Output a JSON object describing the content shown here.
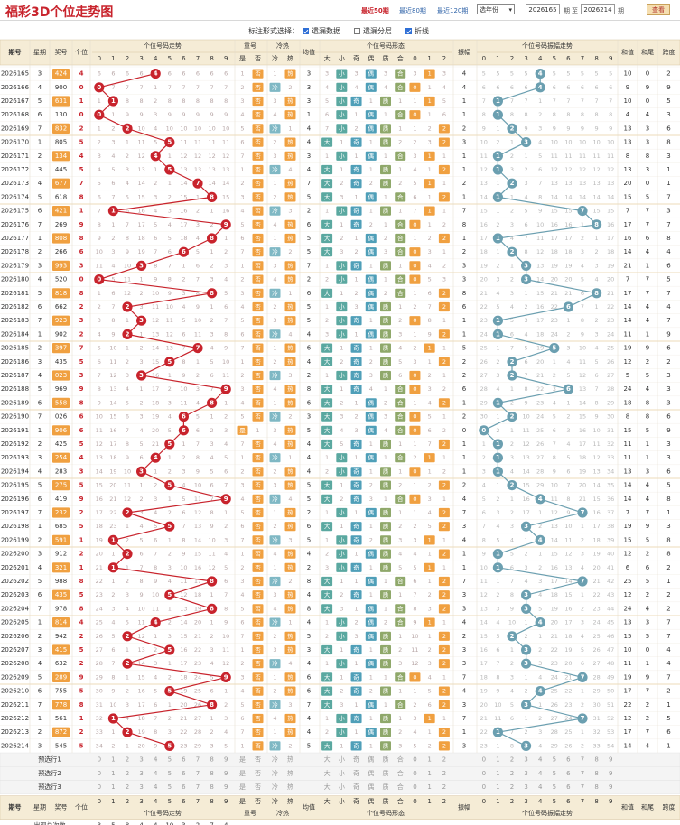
{
  "title": "福彩3D个位走势图",
  "top_links": [
    "最近50期",
    "最近80期",
    "最近120期"
  ],
  "year_select": "选年份",
  "period_from": "2026165",
  "period_to": "2026214",
  "label_qi": "期",
  "label_zhi": "至",
  "query_button": "查看",
  "options_label": "标注形式选择：",
  "options": [
    {
      "label": "遗漏数据",
      "checked": true
    },
    {
      "label": "遗漏分层",
      "checked": false
    },
    {
      "label": "折线",
      "checked": true
    }
  ],
  "headers": {
    "period": "期号",
    "week": "星期",
    "prize": "奖号",
    "unit": "个位",
    "trend": "个位号码走势",
    "repeat": "重号",
    "hotcold": "冷热",
    "avg": "均值",
    "form": "个位号码形态",
    "amplitude": "振幅",
    "amptrend": "个位号码振幅走势",
    "sumval": "和值",
    "sumtail": "和尾",
    "span": "跨度",
    "digits": [
      "0",
      "1",
      "2",
      "3",
      "4",
      "5",
      "6",
      "7",
      "8",
      "9"
    ],
    "repeat_sub": [
      "是",
      "否"
    ],
    "hotcold_sub": [
      "冷",
      "热"
    ],
    "form_sub": [
      "大",
      "小",
      "奇",
      "偶",
      "质",
      "合",
      "0",
      "1",
      "2"
    ]
  },
  "chart_data": {
    "type": "table",
    "periods": [
      "2026165",
      "2026166",
      "2026167",
      "2026168",
      "2026169",
      "2026170",
      "2026171",
      "2026172",
      "2026173",
      "2026174",
      "2026175",
      "2026176",
      "2026177",
      "2026178",
      "2026179",
      "2026180",
      "2026181",
      "2026182",
      "2026183",
      "2026184",
      "2026185",
      "2026186",
      "2026187",
      "2026188",
      "2026189",
      "2026190",
      "2026191",
      "2026192",
      "2026193",
      "2026194",
      "2026195",
      "2026196",
      "2026197",
      "2026198",
      "2026199",
      "2026200",
      "2026201",
      "2026202",
      "2026203",
      "2026204",
      "2026205",
      "2026206",
      "2026207",
      "2026208",
      "2026209",
      "2026210",
      "2026211",
      "2026212",
      "2026213",
      "2026214"
    ],
    "weeks": [
      3,
      4,
      5,
      6,
      7,
      1,
      2,
      3,
      4,
      5,
      6,
      7,
      1,
      2,
      3,
      4,
      5,
      6,
      7,
      1,
      2,
      3,
      4,
      5,
      6,
      7,
      1,
      2,
      3,
      4,
      5,
      6,
      7,
      1,
      2,
      3,
      4,
      5,
      6,
      7,
      1,
      2,
      3,
      4,
      5,
      6,
      7,
      1,
      2,
      3
    ],
    "prizes": [
      "424",
      "900",
      "631",
      "130",
      "832",
      "805",
      "134",
      "445",
      "677",
      "618",
      "421",
      "269",
      "808",
      "266",
      "993",
      "520",
      "818",
      "662",
      "923",
      "902",
      "397",
      "435",
      "023",
      "969",
      "558",
      "026",
      "906",
      "425",
      "254",
      "283",
      "275",
      "419",
      "232",
      "685",
      "591",
      "912",
      "321",
      "988",
      "435",
      "978",
      "814",
      "942",
      "415",
      "632",
      "289",
      "755",
      "778",
      "561",
      "872",
      "545"
    ],
    "units": [
      4,
      0,
      1,
      0,
      2,
      5,
      4,
      5,
      7,
      8,
      1,
      9,
      8,
      6,
      3,
      0,
      8,
      2,
      3,
      2,
      7,
      5,
      3,
      9,
      8,
      6,
      6,
      5,
      4,
      3,
      5,
      9,
      2,
      5,
      1,
      2,
      1,
      8,
      5,
      8,
      4,
      2,
      5,
      2,
      9,
      5,
      8,
      1,
      2,
      5
    ],
    "avgs": [
      3,
      3,
      3,
      1,
      4,
      4,
      3,
      4,
      7,
      5,
      2,
      6,
      5,
      5,
      7,
      2,
      6,
      5,
      5,
      4,
      6,
      4,
      2,
      8,
      6,
      3,
      5,
      4,
      4,
      4,
      5,
      5,
      2,
      6,
      5,
      4,
      2,
      8,
      4,
      8,
      4,
      5,
      3,
      4,
      6,
      6,
      7,
      4,
      4,
      5
    ],
    "amplitudes": [
      4,
      4,
      1,
      1,
      2,
      3,
      1,
      1,
      2,
      1,
      7,
      8,
      1,
      2,
      3,
      3,
      8,
      6,
      1,
      1,
      5,
      2,
      2,
      6,
      1,
      2,
      0,
      1,
      1,
      1,
      2,
      4,
      7,
      3,
      4,
      1,
      1,
      7,
      3,
      3,
      4,
      2,
      3,
      3,
      7,
      4,
      3,
      7,
      1,
      3
    ],
    "sums": [
      10,
      9,
      10,
      4,
      13,
      13,
      8,
      13,
      20,
      15,
      7,
      17,
      16,
      14,
      21,
      7,
      17,
      14,
      14,
      11,
      19,
      12,
      5,
      24,
      18,
      8,
      15,
      11,
      11,
      13,
      14,
      14,
      7,
      19,
      15,
      12,
      6,
      25,
      12,
      24,
      13,
      15,
      10,
      11,
      19,
      17,
      22,
      12,
      17,
      14
    ],
    "sumtails": [
      0,
      9,
      0,
      4,
      3,
      3,
      8,
      3,
      0,
      5,
      7,
      7,
      6,
      4,
      1,
      7,
      7,
      4,
      4,
      1,
      9,
      2,
      5,
      4,
      8,
      8,
      5,
      1,
      1,
      3,
      4,
      4,
      7,
      9,
      5,
      2,
      6,
      5,
      2,
      4,
      3,
      5,
      0,
      1,
      9,
      7,
      2,
      2,
      7,
      4
    ],
    "spans": [
      2,
      9,
      5,
      3,
      6,
      8,
      3,
      1,
      1,
      7,
      3,
      7,
      8,
      4,
      6,
      5,
      7,
      4,
      7,
      9,
      6,
      2,
      3,
      3,
      3,
      6,
      9,
      3,
      3,
      6,
      5,
      8,
      1,
      3,
      8,
      8,
      2,
      1,
      2,
      2,
      7,
      7,
      4,
      4,
      7,
      2,
      1,
      5,
      6,
      1
    ],
    "forecast_labels": [
      "预选行1",
      "预选行2",
      "预选行3"
    ],
    "occurrence_label": "出现总次数",
    "occurrences": [
      3,
      5,
      8,
      4,
      4,
      10,
      3,
      2,
      7,
      4
    ]
  },
  "colors": {
    "accent": "#c8232c",
    "prize_bg": "#f0a040",
    "hit": "#c8232c",
    "amp_hit": "#6b9fb0",
    "header_bg": "#f5ecd6",
    "sep": "#e6cfa0"
  }
}
